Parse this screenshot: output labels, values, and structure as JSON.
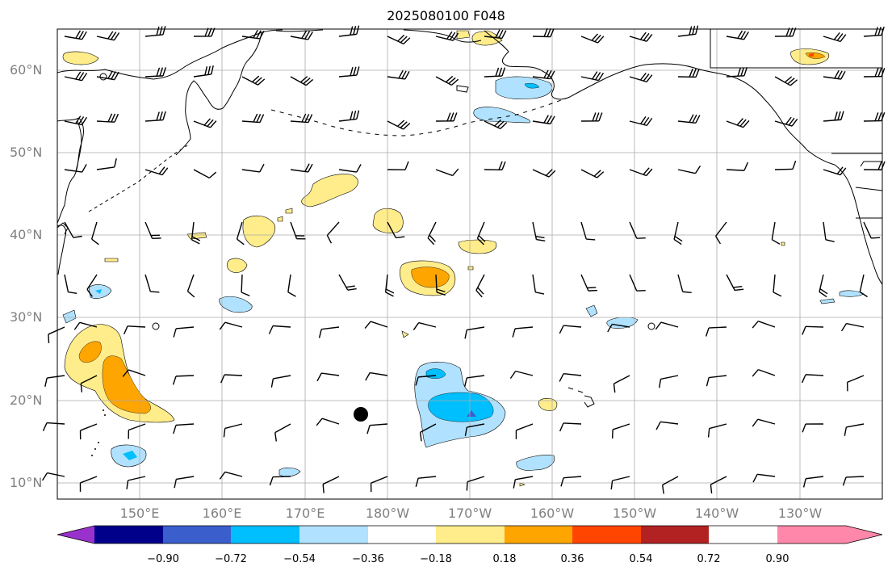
{
  "title": "2025080100 F048",
  "lat_labels": [
    "60°N",
    "50°N",
    "40°N",
    "30°N",
    "20°N",
    "10°N"
  ],
  "lon_labels": [
    "150°E",
    "160°E",
    "170°E",
    "180°W",
    "170°W",
    "160°W",
    "150°W",
    "140°W",
    "130°W"
  ],
  "colorbar": {
    "labels": [
      "−0.90",
      "−0.72",
      "−0.54",
      "−0.36",
      "−0.18",
      "0.18",
      "0.36",
      "0.54",
      "0.72",
      "0.90"
    ],
    "colors": [
      "#9932cc",
      "#00008b",
      "#3a5fcd",
      "#00bfff",
      "#b0e2ff",
      "#ffffff",
      "#ffec8b",
      "#ffa500",
      "#ff4500",
      "#b22222",
      "#ff88aa"
    ]
  },
  "colors": {
    "pos1": "#ffec8b",
    "pos2": "#ffa500",
    "neg1": "#b0e2ff",
    "neg2": "#00bfff",
    "neg3": "#3a5fcd",
    "grid": "#aaaaaa"
  },
  "map_extent": {
    "lon_min": 140,
    "lon_max": 240,
    "lat_min": 8,
    "lat_max": 65
  }
}
